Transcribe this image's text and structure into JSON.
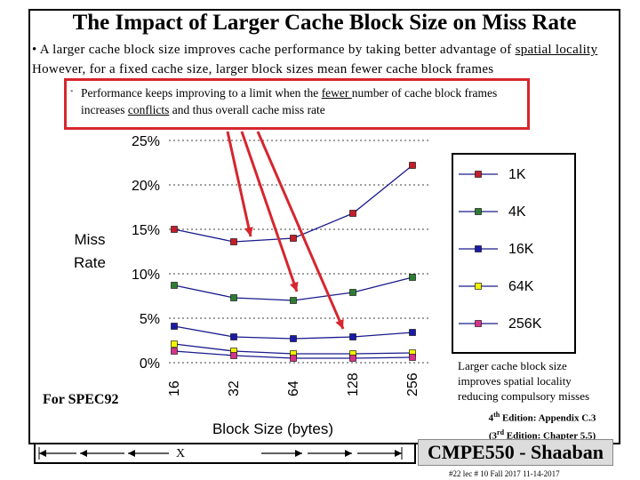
{
  "title": "The Impact of Larger Cache Block Size on Miss Rate",
  "bullet": {
    "marker": "•",
    "part1": "A larger cache block size improves cache performance by taking better advantage of ",
    "u1": "spatial locality ",
    "part2": "However, for a fixed cache size, larger block sizes mean fewer cache block frames"
  },
  "callout": {
    "marker": "•",
    "p1": "Performance keeps improving to a limit  when  the ",
    "u1": "fewer ",
    "p2": "number of cache block frames increases ",
    "u2": "conflicts",
    "p3": " and thus overall cache miss rate"
  },
  "note": {
    "line1": "Larger cache block size",
    "line2": "improves spatial locality",
    "line3": "reducing compulsory misses"
  },
  "spec_label": "For SPEC92",
  "edition": {
    "line1_pre": "4",
    "line1_sup": "th",
    "line1_post": " Edition: Appendix C.3",
    "line2_pre": "(3",
    "line2_sup": "rd",
    "line2_post": " Edition: Chapter 5.5)"
  },
  "course": "CMPE550 - Shaaban",
  "footer": "#22  lec # 10   Fall 2017   11-14-2017",
  "nav_marker": "X",
  "colors": {
    "1K": "#c41e2a",
    "4K": "#2e7d32",
    "16K": "#1a1aa8",
    "64K": "#f2f200",
    "256K": "#d6338a",
    "callout": "#d6262e",
    "arrow": "#d6262e"
  },
  "chart_data": {
    "type": "line",
    "title": "",
    "xlabel": "Block Size (bytes)",
    "ylabel": "Miss Rate",
    "ylabel_line1": "Miss",
    "ylabel_line2": "Rate",
    "categories": [
      "16",
      "32",
      "64",
      "128",
      "256"
    ],
    "ylim": [
      0,
      25
    ],
    "yticks": [
      "0%",
      "5%",
      "10%",
      "15%",
      "20%",
      "25%"
    ],
    "series": [
      {
        "name": "1K",
        "values": [
          15.0,
          13.6,
          14.0,
          16.8,
          22.2
        ]
      },
      {
        "name": "4K",
        "values": [
          8.7,
          7.3,
          7.0,
          7.9,
          9.6
        ]
      },
      {
        "name": "16K",
        "values": [
          4.1,
          2.9,
          2.7,
          2.9,
          3.4
        ]
      },
      {
        "name": "64K",
        "values": [
          2.1,
          1.3,
          1.0,
          1.0,
          1.1
        ]
      },
      {
        "name": "256K",
        "values": [
          1.3,
          0.8,
          0.5,
          0.5,
          0.6
        ]
      }
    ]
  }
}
